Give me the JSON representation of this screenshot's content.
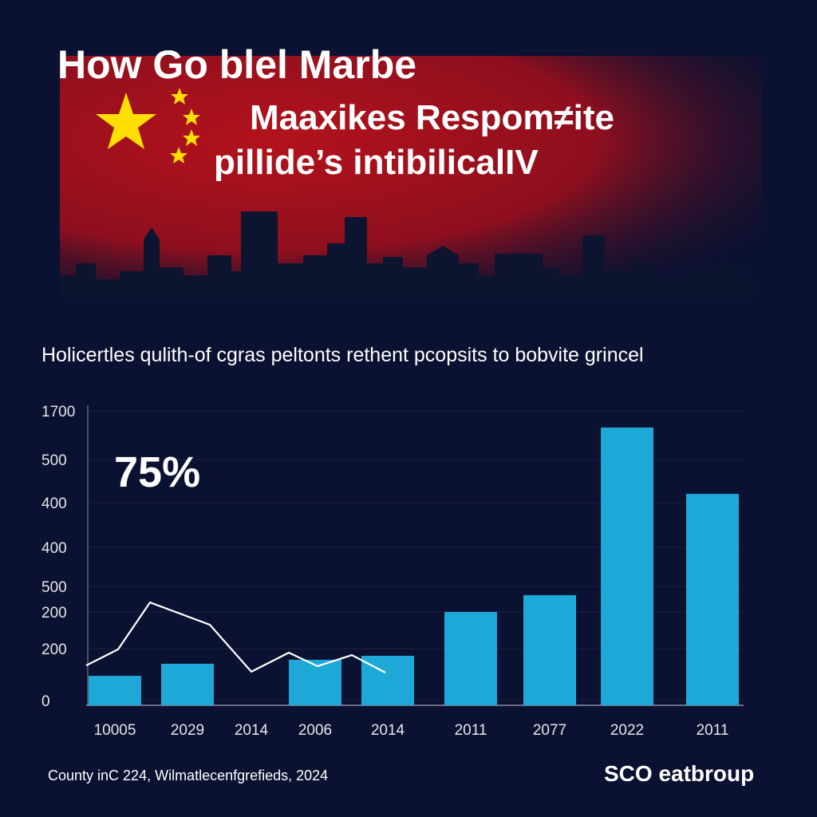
{
  "chart_data": {
    "type": "bar",
    "title": [
      "How Go blel Marbe",
      "Maaxikes Respom≠ite",
      "pillide’s intibilicalIV"
    ],
    "subtitle": "Holicertles qulith-of cgras peltonts rethent pcopsits to bobvite grincel",
    "annotation": "75%",
    "y_axis_labels": [
      "1700",
      "500",
      "400",
      "400",
      "500",
      "200",
      "200",
      "0"
    ],
    "categories": [
      "10005",
      "2029",
      "2014",
      "2006",
      "2014",
      "2011",
      "2077",
      "2022",
      "2011"
    ],
    "series": [
      {
        "type": "bar",
        "color": "#1ea8d8",
        "values": [
          170,
          240,
          null,
          263,
          286,
          539,
          636,
          1604,
          1221
        ]
      },
      {
        "type": "line",
        "color": "#ffffff",
        "values": [
          230,
          323,
          594,
          465,
          194,
          304,
          226,
          290,
          189
        ]
      }
    ],
    "ylim": [
      0,
      1700
    ],
    "source": "County inC 224, Wilmatlecenfgrefieds, 2024",
    "logo": "SCO eatbroup"
  }
}
